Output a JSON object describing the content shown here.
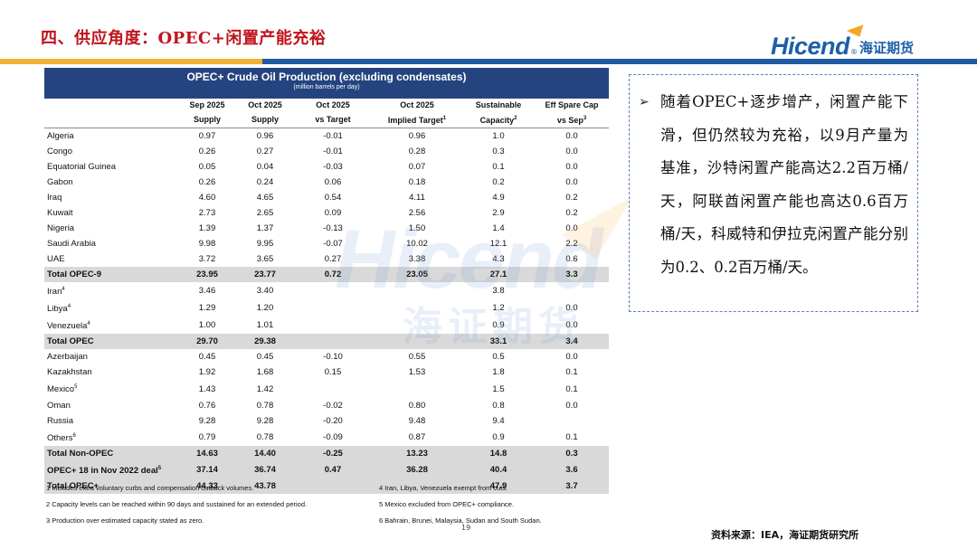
{
  "slide": {
    "title": "四、供应角度：OPEC+闲置产能充裕",
    "page_number": "19",
    "source": "资料来源：IEA，海证期货研究所"
  },
  "logo": {
    "word": "Hicend",
    "reg": "®",
    "cn": "海证期货"
  },
  "watermark": {
    "word": "Hicend",
    "cn": "海证期货"
  },
  "table": {
    "title": "OPEC+ Crude Oil Production (excluding condensates)",
    "subtitle": "(million barrels per day)",
    "headers": [
      {
        "top": "",
        "bottom": ""
      },
      {
        "top": "Sep 2025",
        "bottom": "Supply"
      },
      {
        "top": "Oct 2025",
        "bottom": "Supply"
      },
      {
        "top": "Oct 2025",
        "bottom": "vs Target"
      },
      {
        "top": "Oct 2025",
        "bottom": "Implied Target",
        "sup": "1"
      },
      {
        "top": "Sustainable",
        "bottom": "Capacity",
        "sup": "2"
      },
      {
        "top": "Eff Spare Cap",
        "bottom": "vs Sep",
        "sup": "3"
      }
    ],
    "rows": [
      {
        "name": "Algeria",
        "sup": "",
        "total": false,
        "values": [
          "0.97",
          "0.96",
          "-0.01",
          "0.96",
          "1.0",
          "0.0"
        ]
      },
      {
        "name": "Congo",
        "sup": "",
        "total": false,
        "values": [
          "0.26",
          "0.27",
          "-0.01",
          "0.28",
          "0.3",
          "0.0"
        ]
      },
      {
        "name": "Equatorial Guinea",
        "sup": "",
        "total": false,
        "values": [
          "0.05",
          "0.04",
          "-0.03",
          "0.07",
          "0.1",
          "0.0"
        ]
      },
      {
        "name": "Gabon",
        "sup": "",
        "total": false,
        "values": [
          "0.26",
          "0.24",
          "0.06",
          "0.18",
          "0.2",
          "0.0"
        ]
      },
      {
        "name": "Iraq",
        "sup": "",
        "total": false,
        "values": [
          "4.60",
          "4.65",
          "0.54",
          "4.11",
          "4.9",
          "0.2"
        ]
      },
      {
        "name": "Kuwait",
        "sup": "",
        "total": false,
        "values": [
          "2.73",
          "2.65",
          "0.09",
          "2.56",
          "2.9",
          "0.2"
        ]
      },
      {
        "name": "Nigeria",
        "sup": "",
        "total": false,
        "values": [
          "1.39",
          "1.37",
          "-0.13",
          "1.50",
          "1.4",
          "0.0"
        ]
      },
      {
        "name": "Saudi Arabia",
        "sup": "",
        "total": false,
        "values": [
          "9.98",
          "9.95",
          "-0.07",
          "10.02",
          "12.1",
          "2.2"
        ]
      },
      {
        "name": "UAE",
        "sup": "",
        "total": false,
        "values": [
          "3.72",
          "3.65",
          "0.27",
          "3.38",
          "4.3",
          "0.6"
        ]
      },
      {
        "name": "Total OPEC-9",
        "sup": "",
        "total": true,
        "values": [
          "23.95",
          "23.77",
          "0.72",
          "23.05",
          "27.1",
          "3.3"
        ]
      },
      {
        "name": "Iran",
        "sup": "4",
        "total": false,
        "values": [
          "3.46",
          "3.40",
          "",
          "",
          "3.8",
          ""
        ]
      },
      {
        "name": "Libya",
        "sup": "4",
        "total": false,
        "values": [
          "1.29",
          "1.20",
          "",
          "",
          "1.2",
          "0.0"
        ]
      },
      {
        "name": "Venezuela",
        "sup": "4",
        "total": false,
        "values": [
          "1.00",
          "1.01",
          "",
          "",
          "0.9",
          "0.0"
        ]
      },
      {
        "name": "Total OPEC",
        "sup": "",
        "total": true,
        "values": [
          "29.70",
          "29.38",
          "",
          "",
          "33.1",
          "3.4"
        ]
      },
      {
        "name": "Azerbaijan",
        "sup": "",
        "total": false,
        "values": [
          "0.45",
          "0.45",
          "-0.10",
          "0.55",
          "0.5",
          "0.0"
        ]
      },
      {
        "name": "Kazakhstan",
        "sup": "",
        "total": false,
        "values": [
          "1.92",
          "1.68",
          "0.15",
          "1.53",
          "1.8",
          "0.1"
        ]
      },
      {
        "name": "Mexico",
        "sup": "5",
        "total": false,
        "values": [
          "1.43",
          "1.42",
          "",
          "",
          "1.5",
          "0.1"
        ]
      },
      {
        "name": "Oman",
        "sup": "",
        "total": false,
        "values": [
          "0.76",
          "0.78",
          "-0.02",
          "0.80",
          "0.8",
          "0.0"
        ]
      },
      {
        "name": "Russia",
        "sup": "",
        "total": false,
        "values": [
          "9.28",
          "9.28",
          "-0.20",
          "9.48",
          "9.4",
          ""
        ]
      },
      {
        "name": "Others",
        "sup": "6",
        "total": false,
        "values": [
          "0.79",
          "0.78",
          "-0.09",
          "0.87",
          "0.9",
          "0.1"
        ]
      },
      {
        "name": "Total Non-OPEC",
        "sup": "",
        "total": true,
        "values": [
          "14.63",
          "14.40",
          "-0.25",
          "13.23",
          "14.8",
          "0.3"
        ]
      },
      {
        "name": "OPEC+ 18 in Nov 2022 deal",
        "sup": "5",
        "total": true,
        "values": [
          "37.14",
          "36.74",
          "0.47",
          "36.28",
          "40.4",
          "3.6"
        ]
      },
      {
        "name": "Total OPEC+",
        "sup": "",
        "total": true,
        "values": [
          "44.33",
          "43.78",
          "",
          "",
          "47.9",
          "3.7"
        ]
      }
    ],
    "notes": [
      "1  Includes extra voluntary curbs and compensation cutback volumes.",
      "2  Capacity levels can be reached within 90 days and sustained for an extended period.",
      "3  Production over estimated capacity stated as zero.",
      "4  Iran, Libya, Venezuela exempt from cuts.",
      "5  Mexico excluded from OPEC+ compliance.",
      "6  Bahrain, Brunei, Malaysia, Sudan and South Sudan."
    ]
  },
  "analysis": {
    "bullet": "➢",
    "text": "随着OPEC+逐步增产，闲置产能下滑，但仍然较为充裕，以9月产量为基准，沙特闲置产能高达2.2百万桶/天，阿联酋闲置产能也高达0.6百万桶/天，科威特和伊拉克闲置产能分别为0.2、0.2百万桶/天。"
  },
  "colors": {
    "title_red": "#c0141d",
    "brand_blue": "#1e5aa0",
    "brand_orange": "#f2b233",
    "table_header": "#25447f",
    "total_row": "#d9d9d9"
  }
}
